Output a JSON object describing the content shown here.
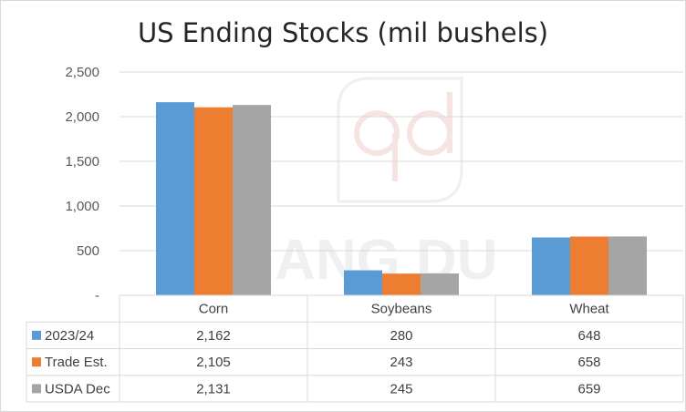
{
  "chart_data": {
    "type": "bar",
    "title": "US Ending Stocks (mil bushels)",
    "categories": [
      "Corn",
      "Soybeans",
      "Wheat"
    ],
    "series": [
      {
        "name": "2023/24",
        "values": [
          2162,
          280,
          648
        ],
        "labels": [
          "2,162",
          "280",
          "648"
        ],
        "color": "#5b9bd5"
      },
      {
        "name": "Trade Est.",
        "values": [
          2105,
          243,
          658
        ],
        "labels": [
          "2,105",
          "243",
          "658"
        ],
        "color": "#ed7d31"
      },
      {
        "name": "USDA Dec",
        "values": [
          2131,
          245,
          659
        ],
        "labels": [
          "2,131",
          "245",
          "659"
        ],
        "color": "#a5a5a5"
      }
    ],
    "ylim": [
      0,
      2500
    ],
    "yticks": [
      0,
      500,
      1000,
      1500,
      2000,
      2500
    ],
    "ytick_labels": [
      "-",
      "500",
      "1,000",
      "1,500",
      "2,000",
      "2,500"
    ],
    "grid": true,
    "legend": "data-table",
    "data_table": true
  }
}
